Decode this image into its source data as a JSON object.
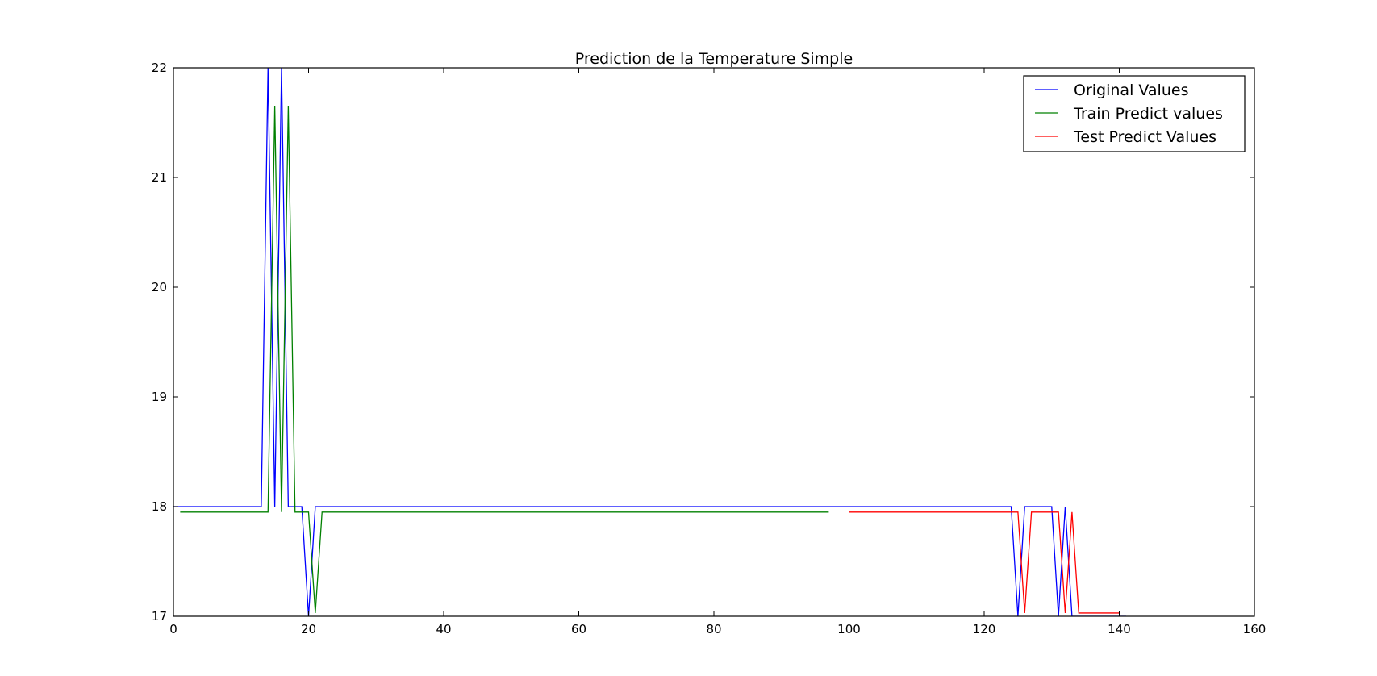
{
  "chart_data": {
    "type": "line",
    "title": "Prediction de la Temperature Simple",
    "xlabel": "",
    "ylabel": "",
    "xlim": [
      0,
      160
    ],
    "ylim": [
      17,
      22
    ],
    "xticks": [
      "0",
      "20",
      "40",
      "60",
      "80",
      "100",
      "120",
      "140",
      "160"
    ],
    "yticks": [
      "17",
      "18",
      "19",
      "20",
      "21",
      "22"
    ],
    "grid": false,
    "legend_position": "top-right",
    "series": [
      {
        "name": "Original Values",
        "color": "#0000ff",
        "points": [
          [
            0,
            18
          ],
          [
            13,
            18
          ],
          [
            14,
            22
          ],
          [
            15,
            18
          ],
          [
            16,
            22
          ],
          [
            17,
            18
          ],
          [
            19,
            18
          ],
          [
            20,
            17
          ],
          [
            21,
            18
          ],
          [
            124,
            18
          ],
          [
            125,
            17
          ],
          [
            126,
            18
          ],
          [
            130,
            18
          ],
          [
            131,
            17
          ],
          [
            132,
            18
          ],
          [
            133,
            17
          ],
          [
            141,
            17
          ]
        ]
      },
      {
        "name": "Train Predict values",
        "color": "#008000",
        "points": [
          [
            1,
            17.95
          ],
          [
            14,
            17.95
          ],
          [
            15,
            21.65
          ],
          [
            16,
            17.95
          ],
          [
            17,
            21.65
          ],
          [
            18,
            17.95
          ],
          [
            20,
            17.95
          ],
          [
            21,
            17.03
          ],
          [
            22,
            17.95
          ],
          [
            97,
            17.95
          ]
        ]
      },
      {
        "name": "Test Predict Values",
        "color": "#ff0000",
        "points": [
          [
            100,
            17.95
          ],
          [
            125,
            17.95
          ],
          [
            126,
            17.03
          ],
          [
            127,
            17.95
          ],
          [
            131,
            17.95
          ],
          [
            132,
            17.03
          ],
          [
            133,
            17.95
          ],
          [
            134,
            17.03
          ],
          [
            140,
            17.03
          ]
        ]
      }
    ]
  }
}
